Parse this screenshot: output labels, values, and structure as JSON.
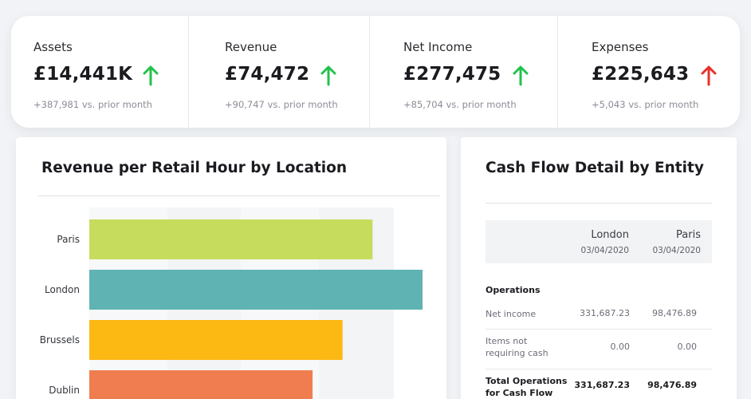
{
  "kpis": [
    {
      "label": "Assets",
      "value": "£14,441K",
      "trend": "up",
      "delta": "+387,981 vs. prior month"
    },
    {
      "label": "Revenue",
      "value": "£74,472",
      "trend": "up",
      "delta": "+90,747 vs. prior month"
    },
    {
      "label": "Net Income",
      "value": "£277,475",
      "trend": "up",
      "delta": "+85,704 vs. prior month"
    },
    {
      "label": "Expenses",
      "value": "£225,643",
      "trend": "up",
      "delta": "+5,043 vs. prior month"
    }
  ],
  "colors": {
    "up_good": "#22c24a",
    "up_bad": "#e8312a"
  },
  "revenue_chart": {
    "title": "Revenue per Retail Hour by Location"
  },
  "chart_data": {
    "type": "bar",
    "orientation": "horizontal",
    "title": "Revenue per Retail Hour by Location",
    "categories": [
      "Paris",
      "London",
      "Brussels",
      "Dublin"
    ],
    "values": [
      85,
      100,
      76,
      67
    ],
    "colors": [
      "#c6dc5c",
      "#5fb3b3",
      "#fcb813",
      "#ef7d4f"
    ],
    "xlim": [
      0,
      100
    ],
    "grid": false,
    "legend": "none"
  },
  "cash_flow": {
    "title": "Cash Flow Detail by Entity",
    "columns": [
      {
        "city": "London",
        "date": "03/04/2020"
      },
      {
        "city": "Paris",
        "date": "03/04/2020"
      }
    ],
    "section": "Operations",
    "rows": [
      {
        "label": "Net income",
        "values": [
          "331,687.23",
          "98,476.89"
        ],
        "bold": false
      },
      {
        "label": "Items not requiring cash",
        "values": [
          "0.00",
          "0.00"
        ],
        "bold": false
      },
      {
        "label": "Total Operations for Cash Flow",
        "values": [
          "331,687.23",
          "98,476.89"
        ],
        "bold": true
      }
    ]
  }
}
